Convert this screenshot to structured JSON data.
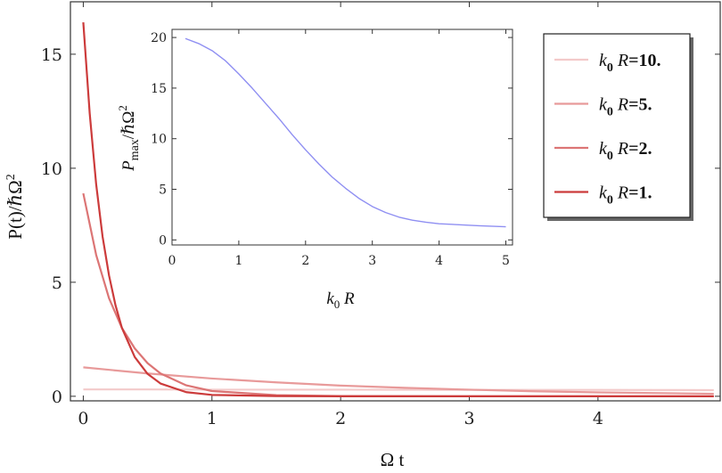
{
  "chart_data": [
    {
      "type": "line",
      "title": "",
      "xlabel": "Ω t",
      "ylabel": "P(t)/ℏΩ²",
      "xlim": [
        -0.1,
        4.95
      ],
      "ylim": [
        -0.2,
        17.3
      ],
      "xticks": [
        "0",
        "1",
        "2",
        "3",
        "4",
        "5"
      ],
      "yticks": [
        "0",
        "5",
        "10",
        "15"
      ],
      "grid": false,
      "legend_position": "top-right",
      "series": [
        {
          "name": "k0 R=10.",
          "color": "#f3caca",
          "x": [
            0,
            0.5,
            1,
            2,
            3,
            4,
            4.9
          ],
          "y": [
            0.3,
            0.3,
            0.29,
            0.29,
            0.28,
            0.28,
            0.27
          ]
        },
        {
          "name": "k0 R=5.",
          "color": "#e89a9a",
          "x": [
            0,
            0.5,
            1,
            1.5,
            2,
            2.5,
            3,
            3.5,
            4,
            4.5,
            4.9
          ],
          "y": [
            1.27,
            1.0,
            0.78,
            0.61,
            0.47,
            0.37,
            0.29,
            0.22,
            0.17,
            0.14,
            0.11
          ]
        },
        {
          "name": "k0 R=2.",
          "color": "#dc7575",
          "x": [
            0,
            0.1,
            0.2,
            0.3,
            0.4,
            0.5,
            0.6,
            0.8,
            1,
            1.5,
            2,
            3,
            4,
            4.9
          ],
          "y": [
            8.9,
            6.2,
            4.3,
            3.0,
            2.1,
            1.45,
            1.0,
            0.48,
            0.23,
            0.05,
            0.01,
            0,
            0,
            0
          ]
        },
        {
          "name": "k0 R=1.",
          "color": "#cc3b3b",
          "x": [
            0,
            0.05,
            0.1,
            0.15,
            0.2,
            0.25,
            0.3,
            0.4,
            0.5,
            0.6,
            0.8,
            1,
            1.5,
            2,
            3,
            4,
            4.9
          ],
          "y": [
            16.4,
            12.4,
            9.3,
            7.0,
            5.3,
            4.0,
            3.0,
            1.72,
            0.98,
            0.56,
            0.18,
            0.06,
            0.01,
            0,
            0,
            0,
            0
          ]
        }
      ]
    },
    {
      "type": "line",
      "title": "",
      "xlabel": "k0 R",
      "ylabel": "Pmax/ℏΩ²",
      "xlim": [
        0,
        5.1
      ],
      "ylim": [
        -0.5,
        20.8
      ],
      "xticks": [
        "0",
        "1",
        "2",
        "3",
        "4",
        "5"
      ],
      "yticks": [
        "0",
        "5",
        "10",
        "15",
        "20"
      ],
      "grid": false,
      "series": [
        {
          "color": "#8f8ff2",
          "x": [
            0.2,
            0.4,
            0.6,
            0.8,
            1.0,
            1.2,
            1.4,
            1.6,
            1.8,
            2.0,
            2.2,
            2.4,
            2.6,
            2.8,
            3.0,
            3.2,
            3.4,
            3.6,
            3.8,
            4.0,
            4.3,
            4.6,
            5.0
          ],
          "y": [
            19.9,
            19.4,
            18.7,
            17.7,
            16.4,
            15.0,
            13.5,
            12.0,
            10.4,
            8.9,
            7.5,
            6.2,
            5.1,
            4.1,
            3.3,
            2.7,
            2.25,
            1.95,
            1.75,
            1.6,
            1.5,
            1.4,
            1.3
          ]
        }
      ]
    }
  ],
  "legend": {
    "items": [
      {
        "k": "k",
        "sub": "0",
        "r": " R",
        "value": "=10.",
        "color": "#f3caca"
      },
      {
        "k": "k",
        "sub": "0",
        "r": " R",
        "value": "=5.",
        "color": "#e89a9a"
      },
      {
        "k": "k",
        "sub": "0",
        "r": " R",
        "value": "=2.",
        "color": "#dc7575"
      },
      {
        "k": "k",
        "sub": "0",
        "r": " R",
        "value": "=1.",
        "color": "#cc3b3b"
      }
    ]
  },
  "labels": {
    "main_x": "Ω t",
    "main_y": "P(t)/ℏΩ",
    "main_y_sup": "2",
    "inset_x_k": "k",
    "inset_x_sub": "0",
    "inset_x_r": " R",
    "inset_y_p": "P",
    "inset_y_sub": "max",
    "inset_y_rest": "/ℏΩ",
    "inset_y_sup": "2"
  }
}
